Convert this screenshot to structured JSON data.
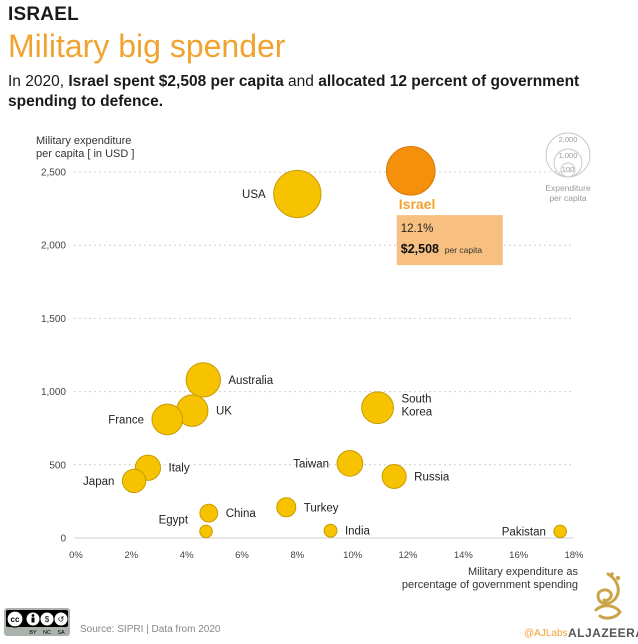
{
  "header": {
    "kicker": "ISRAEL",
    "headline": "Military big spender",
    "subtitle_parts": [
      {
        "text": "In 2020, ",
        "bold": false
      },
      {
        "text": "Israel spent $2,508 per capita",
        "bold": true
      },
      {
        "text": " and ",
        "bold": false
      },
      {
        "text": "allocated 12 percent of government spending to defence.",
        "bold": true
      }
    ]
  },
  "chart_data": {
    "type": "scatter",
    "ylabel_lines": [
      "Military expenditure",
      "per capita [ in USD ]"
    ],
    "xlabel_lines": [
      "Military expenditure as",
      "percentage of government spending"
    ],
    "xlim": [
      0,
      18
    ],
    "ylim": [
      0,
      2500
    ],
    "x_ticks": [
      0,
      2,
      4,
      6,
      8,
      10,
      12,
      14,
      16,
      18
    ],
    "x_tick_labels": [
      "0%",
      "2%",
      "4%",
      "6%",
      "8%",
      "10%",
      "12%",
      "14%",
      "16%",
      "18%"
    ],
    "y_ticks": [
      0,
      500,
      1000,
      1500,
      2000,
      2500
    ],
    "y_tick_labels": [
      "0",
      "500",
      "1,000",
      "1,500",
      "2,000",
      "2,500"
    ],
    "points": [
      {
        "name": "Israel",
        "x": 12.1,
        "y": 2508,
        "highlight": true,
        "label_side": "below"
      },
      {
        "name": "USA",
        "x": 8.0,
        "y": 2350,
        "label_side": "left"
      },
      {
        "name": "Australia",
        "x": 4.6,
        "y": 1080,
        "label_side": "right"
      },
      {
        "name": "UK",
        "x": 4.2,
        "y": 870,
        "label_side": "right"
      },
      {
        "name": "France",
        "x": 3.3,
        "y": 810,
        "label_side": "left"
      },
      {
        "name": "South Korea",
        "x": 10.9,
        "y": 890,
        "label_side": "right2"
      },
      {
        "name": "Italy",
        "x": 2.6,
        "y": 480,
        "label_side": "right"
      },
      {
        "name": "Japan",
        "x": 2.1,
        "y": 390,
        "label_side": "left"
      },
      {
        "name": "Taiwan",
        "x": 9.9,
        "y": 510,
        "label_side": "left"
      },
      {
        "name": "Russia",
        "x": 11.5,
        "y": 420,
        "label_side": "right"
      },
      {
        "name": "Turkey",
        "x": 7.6,
        "y": 210,
        "label_side": "right"
      },
      {
        "name": "China",
        "x": 4.8,
        "y": 170,
        "label_side": "right"
      },
      {
        "name": "Egypt",
        "x": 4.7,
        "y": 45,
        "label_side": "upleft"
      },
      {
        "name": "India",
        "x": 9.2,
        "y": 50,
        "label_side": "right"
      },
      {
        "name": "Pakistan",
        "x": 17.5,
        "y": 45,
        "label_side": "left"
      }
    ],
    "callout": {
      "pct": "12.1%",
      "value": "$2,508",
      "unit": "per capita"
    },
    "size_legend": {
      "values": [
        "2,000",
        "1,000",
        "100"
      ],
      "caption_lines": [
        "Expenditure",
        "per capita"
      ]
    }
  },
  "footer": {
    "cc_badges": [
      "BY",
      "NC",
      "SA"
    ],
    "source": "Source: SIPRI | Data from 2020",
    "credit": "@AJLabs",
    "brand": "ALJAZEERA"
  },
  "colors": {
    "accent": "#f0a330",
    "bubble": "#f7c200",
    "bubble_stroke": "#c79c00",
    "highlight": "#f5900b",
    "highlight_stroke": "#d8770a",
    "callout_bg": "#f7bf80"
  }
}
